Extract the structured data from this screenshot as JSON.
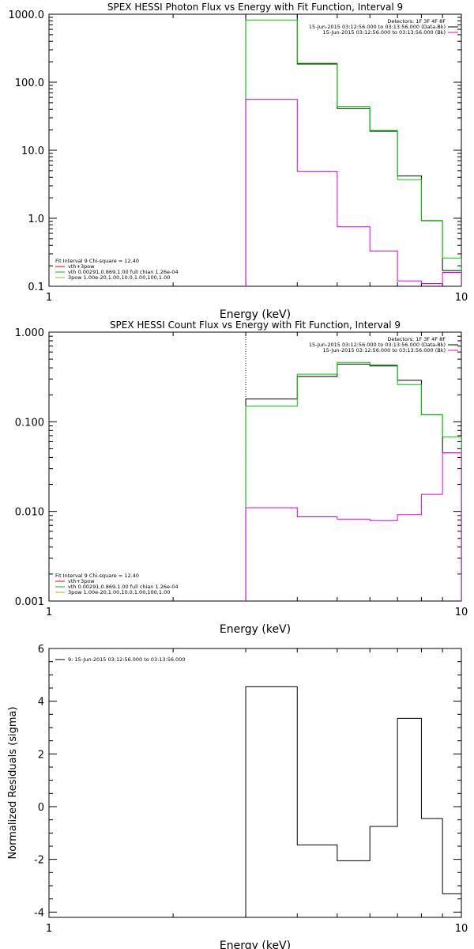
{
  "chart_data": [
    {
      "type": "line",
      "title": "SPEX HESSI Photon Flux vs Energy with Fit Function, Interval 9",
      "xlabel": "Energy (keV)",
      "ylabel": "",
      "xscale": "log",
      "yscale": "log",
      "xlim": [
        1,
        10
      ],
      "ylim": [
        0.1,
        1000
      ],
      "xticks": [
        {
          "v": 1,
          "label": "1"
        },
        {
          "v": 10,
          "label": "10"
        }
      ],
      "yticks": [
        {
          "v": 0.1,
          "label": "0.1"
        },
        {
          "v": 1,
          "label": "1.0"
        },
        {
          "v": 10,
          "label": "10.0"
        },
        {
          "v": 100,
          "label": "100.0"
        },
        {
          "v": 1000,
          "label": "1000.0"
        }
      ],
      "vline": 3.0,
      "legend_right": [
        {
          "text": "Detectors: 1F 3F 4F 8F",
          "color": ""
        },
        {
          "text": "15-Jun-2015 03:12:56.000 to 03:13:56.000 (Data-Bk)",
          "color": "#000000"
        },
        {
          "text": "15-Jun-2015 03:12:56.000 to 03:13:56.000 (Bk)",
          "color": "#e000e0"
        }
      ],
      "legend_left": [
        {
          "text": "Fit Interval 9   Chi-square = 12.40",
          "color": ""
        },
        {
          "text": "vth+3pow",
          "color": "#e00000"
        },
        {
          "text": "vth 0.00291,0.869,1.00   full chian 1.26e-04",
          "color": "#00c000"
        },
        {
          "text": "3pow 1.00e-20,1.00,10.0,1.00,100,1.00",
          "color": "#d0a000"
        }
      ],
      "edges": [
        3.0,
        3.5,
        4.0,
        4.5,
        5.0,
        5.5,
        6.0,
        6.5,
        7.0,
        8.0,
        9.0,
        10.0
      ],
      "series": [
        {
          "name": "",
          "color": "#000000",
          "values": [
            1000,
            1000,
            185,
            185,
            41,
            41,
            19,
            19,
            4.2,
            0.92,
            0.17
          ]
        },
        {
          "name": "",
          "color": "#00cc00",
          "values": [
            820,
            820,
            190,
            190,
            44,
            44,
            19.5,
            19.5,
            3.7,
            0.93,
            0.26
          ]
        },
        {
          "name": "",
          "color": "#dd00dd",
          "values": [
            56,
            56,
            4.9,
            4.9,
            0.75,
            0.75,
            0.33,
            0.33,
            0.12,
            0.11,
            0.16
          ]
        }
      ]
    },
    {
      "type": "line",
      "title": "SPEX HESSI Count Flux vs Energy with Fit Function, Interval 9",
      "xlabel": "Energy (keV)",
      "ylabel": "",
      "xscale": "log",
      "yscale": "log",
      "xlim": [
        1,
        10
      ],
      "ylim": [
        0.001,
        1
      ],
      "xticks": [
        {
          "v": 1,
          "label": "1"
        },
        {
          "v": 10,
          "label": "10"
        }
      ],
      "yticks": [
        {
          "v": 0.001,
          "label": "0.001"
        },
        {
          "v": 0.01,
          "label": "0.010"
        },
        {
          "v": 0.1,
          "label": "0.100"
        },
        {
          "v": 1,
          "label": "1.000"
        }
      ],
      "vline": 3.0,
      "legend_right": [
        {
          "text": "Detectors: 1F 3F 4F 8F",
          "color": ""
        },
        {
          "text": "15-Jun-2015 03:12:56.000 to 03:13:56.000 (Data-Bk)",
          "color": "#000000"
        },
        {
          "text": "15-Jun-2015 03:12:56.000 to 03:13:56.000 (Bk)",
          "color": "#e000e0"
        }
      ],
      "legend_left": [
        {
          "text": "Fit Interval 9   Chi-square = 12.40",
          "color": ""
        },
        {
          "text": "vth+3pow",
          "color": "#e00000"
        },
        {
          "text": "vth 0.00291,0.869,1.00   full chian 1.26e-04",
          "color": "#00c000"
        },
        {
          "text": "3pow 1.00e-20,1.00,10.0,1.00,100,1.00",
          "color": "#d0a000"
        }
      ],
      "edges": [
        3.0,
        3.5,
        4.0,
        4.5,
        5.0,
        5.5,
        6.0,
        6.5,
        7.0,
        8.0,
        9.0,
        10.0
      ],
      "series": [
        {
          "name": "",
          "color": "#000000",
          "values": [
            0.18,
            0.18,
            0.32,
            0.32,
            0.44,
            0.44,
            0.42,
            0.42,
            0.29,
            0.12,
            0.045
          ]
        },
        {
          "name": "",
          "color": "#00cc00",
          "values": [
            0.15,
            0.15,
            0.34,
            0.34,
            0.46,
            0.46,
            0.43,
            0.43,
            0.26,
            0.12,
            0.068
          ]
        },
        {
          "name": "",
          "color": "#dd00dd",
          "values": [
            0.011,
            0.011,
            0.0087,
            0.0087,
            0.0082,
            0.0082,
            0.0079,
            0.0079,
            0.0092,
            0.0155,
            0.045
          ]
        }
      ]
    },
    {
      "type": "line",
      "title": "",
      "xlabel": "Energy (keV)",
      "ylabel": "Normalized Residuals (sigma)",
      "xscale": "log",
      "yscale": "linear",
      "xlim": [
        1,
        10
      ],
      "ylim": [
        -4.2,
        6
      ],
      "xticks": [
        {
          "v": 1,
          "label": "1"
        },
        {
          "v": 10,
          "label": "10"
        }
      ],
      "yticks": [
        {
          "v": -4,
          "label": "-4"
        },
        {
          "v": -2,
          "label": "-2"
        },
        {
          "v": 0,
          "label": "0"
        },
        {
          "v": 2,
          "label": "2"
        },
        {
          "v": 4,
          "label": "4"
        },
        {
          "v": 6,
          "label": "6"
        }
      ],
      "legend_left": [
        {
          "text": "9: 15-Jun-2015 03:12:56.000 to 03:13:56.000",
          "color": "#000000"
        }
      ],
      "edges": [
        3.0,
        3.5,
        4.0,
        4.5,
        5.0,
        5.5,
        6.0,
        6.5,
        7.0,
        8.0,
        9.0,
        10.0
      ],
      "series": [
        {
          "name": "",
          "color": "#000000",
          "values": [
            4.55,
            4.55,
            -1.45,
            -1.45,
            -2.05,
            -2.05,
            -0.75,
            -0.75,
            3.35,
            -0.45,
            -3.3
          ]
        }
      ]
    }
  ]
}
